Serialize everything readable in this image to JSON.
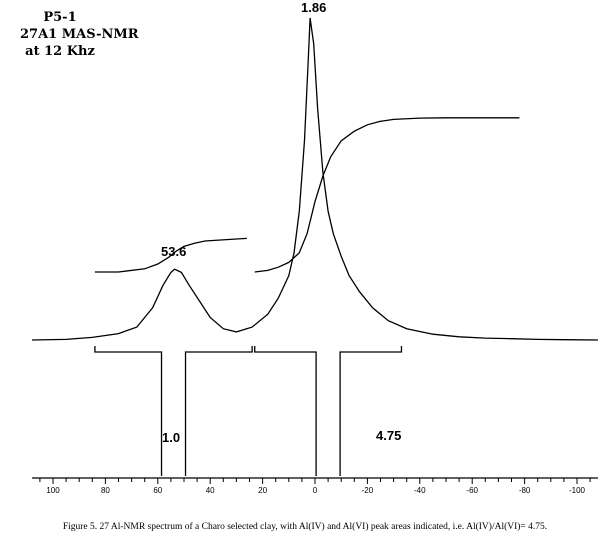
{
  "sample": {
    "line1": "P5-1",
    "line2": "27A1 MAS-NMR",
    "line3": "at 12 Khz"
  },
  "caption": "Figure 5. 27 Al-NMR spectrum of a Charo selected clay, with  Al(IV)  and Al(VI) peak areas indicated, i.e. Al(IV)/Al(VI)= 4.75.",
  "chart_data": {
    "type": "line",
    "title": "",
    "xlabel": "",
    "ylabel": "",
    "xlim": [
      108,
      -108
    ],
    "axis_reversed": true,
    "xticks": [
      100,
      80,
      60,
      40,
      20,
      0,
      -20,
      -40,
      -60,
      -80,
      -100
    ],
    "xtick_labels": [
      "100",
      "80",
      "60",
      "40",
      "20",
      "0",
      "-20",
      "-40",
      "-60",
      "-80",
      "-100"
    ],
    "peaks": [
      {
        "label": "53.6",
        "x": 53.6,
        "relative_height": 0.22
      },
      {
        "label": "1.86",
        "x": 1.86,
        "relative_height": 1.0
      }
    ],
    "integration_ranges": [
      {
        "label": "1.0",
        "from": 84,
        "to": 24,
        "value": 1.0
      },
      {
        "label": "4.75",
        "from": 23,
        "to": -33,
        "value": 4.75
      }
    ],
    "series": [
      {
        "x": [
          108,
          95,
          85,
          75,
          68,
          62,
          58,
          55,
          53.6,
          51,
          48,
          44,
          40,
          35,
          30,
          24,
          18,
          14,
          10,
          8,
          6,
          4,
          2.5,
          1.86,
          0.5,
          -1,
          -3,
          -5,
          -7,
          -10,
          -13,
          -17,
          -22,
          -28,
          -35,
          -45,
          -55,
          -65,
          -75,
          -85,
          -95,
          -108
        ],
        "y": [
          0,
          0.002,
          0.008,
          0.02,
          0.04,
          0.1,
          0.17,
          0.21,
          0.22,
          0.21,
          0.17,
          0.12,
          0.07,
          0.035,
          0.025,
          0.04,
          0.08,
          0.13,
          0.2,
          0.27,
          0.4,
          0.62,
          0.88,
          1.0,
          0.92,
          0.72,
          0.52,
          0.4,
          0.33,
          0.26,
          0.2,
          0.15,
          0.1,
          0.06,
          0.035,
          0.018,
          0.01,
          0.006,
          0.004,
          0.002,
          0.001,
          0
        ]
      }
    ],
    "integral_curves": [
      {
        "x": [
          84,
          75,
          65,
          60,
          56,
          53,
          50,
          46,
          42,
          36,
          30,
          26
        ],
        "y": [
          0.3,
          0.3,
          0.31,
          0.325,
          0.345,
          0.365,
          0.38,
          0.39,
          0.397,
          0.4,
          0.403,
          0.405
        ]
      },
      {
        "x": [
          23,
          18,
          14,
          10,
          6,
          3,
          0,
          -3,
          -6,
          -10,
          -15,
          -20,
          -25,
          -30,
          -40,
          -50,
          -60,
          -70,
          -78
        ],
        "y": [
          0.3,
          0.305,
          0.315,
          0.33,
          0.36,
          0.42,
          0.52,
          0.6,
          0.66,
          0.71,
          0.74,
          0.76,
          0.771,
          0.777,
          0.781,
          0.782,
          0.782,
          0.782,
          0.782
        ]
      }
    ],
    "grid": false
  }
}
